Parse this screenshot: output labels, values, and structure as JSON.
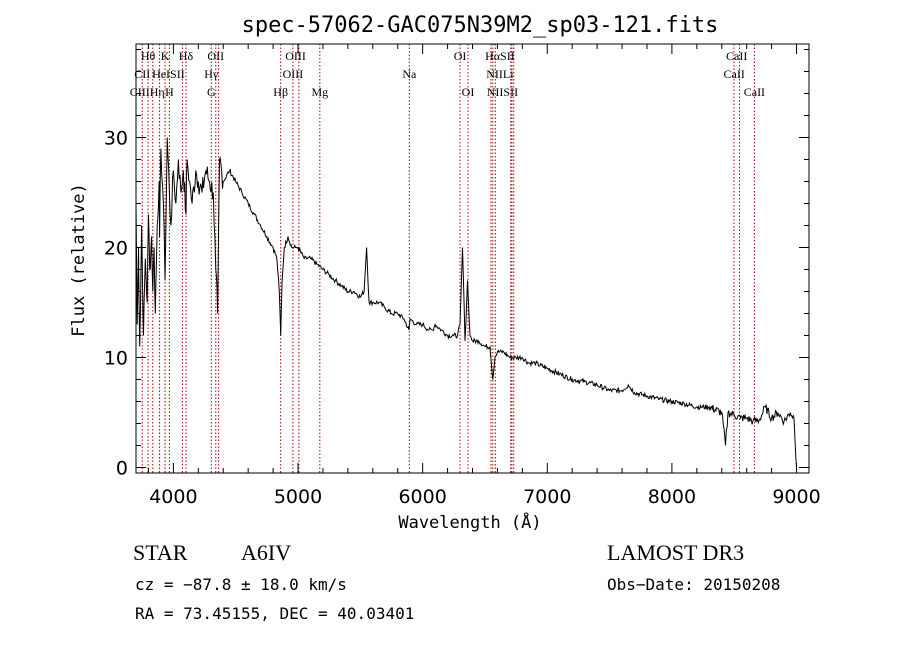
{
  "chart_data": {
    "type": "line",
    "title": "spec-57062-GAC075N39M2_sp03-121.fits",
    "xlabel": "Wavelength (Å)",
    "ylabel": "Flux (relative)",
    "xlim": [
      3700,
      9100
    ],
    "ylim": [
      -0.5,
      38.5
    ],
    "xticks": [
      4000,
      5000,
      6000,
      7000,
      8000,
      9000
    ],
    "yticks": [
      0,
      10,
      20,
      30
    ],
    "grid": false,
    "series": [
      {
        "name": "spectrum",
        "x": [
          3700,
          3710,
          3720,
          3730,
          3745,
          3760,
          3775,
          3790,
          3800,
          3810,
          3825,
          3835,
          3845,
          3855,
          3870,
          3885,
          3889,
          3900,
          3920,
          3933,
          3950,
          3968,
          3980,
          4000,
          4020,
          4040,
          4060,
          4080,
          4101,
          4110,
          4130,
          4150,
          4180,
          4200,
          4230,
          4260,
          4290,
          4320,
          4340,
          4355,
          4370,
          4400,
          4450,
          4500,
          4550,
          4600,
          4650,
          4700,
          4750,
          4800,
          4830,
          4850,
          4861,
          4872,
          4890,
          4920,
          4950,
          4980,
          5000,
          5050,
          5100,
          5150,
          5200,
          5250,
          5300,
          5350,
          5400,
          5450,
          5500,
          5530,
          5550,
          5570,
          5600,
          5650,
          5700,
          5750,
          5800,
          5850,
          5890,
          5900,
          5950,
          6000,
          6050,
          6080,
          6100,
          6150,
          6200,
          6250,
          6280,
          6300,
          6320,
          6340,
          6360,
          6380,
          6400,
          6450,
          6500,
          6540,
          6563,
          6580,
          6600,
          6650,
          6700,
          6750,
          6800,
          6850,
          6900,
          7000,
          7100,
          7200,
          7300,
          7400,
          7500,
          7600,
          7650,
          7700,
          7800,
          7900,
          8000,
          8100,
          8200,
          8300,
          8400,
          8430,
          8450,
          8500,
          8550,
          8600,
          8650,
          8700,
          8750,
          8800,
          8850,
          8900,
          8950,
          8980,
          9000
        ],
        "values": [
          24,
          13,
          20,
          11,
          22,
          12,
          19,
          15,
          23,
          18,
          21,
          16,
          20,
          14,
          22,
          26,
          21,
          29,
          24,
          17,
          30,
          25,
          22,
          27,
          24,
          28,
          25,
          27,
          23,
          28,
          26,
          24,
          27,
          26,
          25,
          27,
          26,
          25,
          18,
          14,
          28,
          26,
          27,
          26,
          25,
          24,
          23,
          22,
          21,
          20,
          19,
          16,
          12,
          17,
          20,
          21,
          20,
          20,
          20,
          19,
          19,
          18.5,
          18,
          17.5,
          17,
          16.5,
          16,
          16,
          15.5,
          16,
          20,
          15,
          15,
          15,
          14.5,
          14,
          14,
          13.5,
          12.5,
          13.5,
          13,
          13,
          12.5,
          12.5,
          13,
          12.5,
          12,
          12,
          12,
          13,
          20,
          11.5,
          17,
          12,
          11.5,
          11.5,
          11,
          11,
          8,
          10,
          10.5,
          10.5,
          10,
          10,
          10,
          9.5,
          9.5,
          9,
          8.5,
          8,
          7.8,
          7.5,
          7,
          7,
          7.5,
          6.8,
          6.5,
          6.2,
          6,
          5.8,
          5.5,
          5.5,
          5,
          2,
          5,
          4.8,
          4.5,
          4.5,
          4.2,
          4.3,
          5.5,
          4.5,
          5,
          4.2,
          5,
          4.5,
          0
        ]
      }
    ],
    "lines": [
      {
        "x": 3750,
        "labels": [
          "Hθ",
          "CII",
          "CIII"
        ]
      },
      {
        "x": 3797,
        "labels": [
          "Hθ"
        ]
      },
      {
        "x": 3835,
        "labels": []
      },
      {
        "x": 3889,
        "labels": [
          "Hε",
          "Hη"
        ]
      },
      {
        "x": 3933,
        "labels": [
          "K"
        ]
      },
      {
        "x": 3968,
        "labels": [
          "HeI",
          "H"
        ]
      },
      {
        "x": 4072,
        "labels": [
          "SII"
        ]
      },
      {
        "x": 4101,
        "labels": [
          "Hδ",
          "SII"
        ]
      },
      {
        "x": 4304,
        "labels": [
          "Hγ",
          "G"
        ]
      },
      {
        "x": 4340,
        "labels": [
          "OII",
          "G"
        ]
      },
      {
        "x": 4363,
        "labels": [
          "OII"
        ]
      },
      {
        "x": 4861,
        "labels": [
          "Hβ"
        ]
      },
      {
        "x": 4959,
        "labels": [
          "OIII",
          "OIII"
        ]
      },
      {
        "x": 5007,
        "labels": [
          "OIII"
        ]
      },
      {
        "x": 5175,
        "labels": [
          "Mg"
        ]
      },
      {
        "x": 5893,
        "labels": [
          "Na"
        ]
      },
      {
        "x": 6300,
        "labels": [
          "OI"
        ]
      },
      {
        "x": 6364,
        "labels": [
          "OI"
        ]
      },
      {
        "x": 6548,
        "labels": [
          "NII"
        ]
      },
      {
        "x": 6563,
        "labels": [
          "Hα"
        ]
      },
      {
        "x": 6583,
        "labels": [
          "NII"
        ]
      },
      {
        "x": 6707,
        "labels": [
          "Li"
        ]
      },
      {
        "x": 6716,
        "labels": [
          "SII",
          "SII"
        ]
      },
      {
        "x": 6731,
        "labels": [
          "SII"
        ]
      },
      {
        "x": 8498,
        "labels": [
          "CaII"
        ]
      },
      {
        "x": 8542,
        "labels": [
          "CaII"
        ]
      },
      {
        "x": 8662,
        "labels": [
          "CaII"
        ]
      }
    ],
    "annotations": [
      {
        "text": "Hθ",
        "x": 3797,
        "row": 0
      },
      {
        "text": "K",
        "x": 3933,
        "row": 0
      },
      {
        "text": "Hδ",
        "x": 4101,
        "row": 0
      },
      {
        "text": "OII",
        "x": 4340,
        "row": 0
      },
      {
        "text": "OIII",
        "x": 4980,
        "row": 0
      },
      {
        "text": "OI",
        "x": 6300,
        "row": 0
      },
      {
        "text": "HαSII",
        "x": 6620,
        "row": 0
      },
      {
        "text": "CaII",
        "x": 8520,
        "row": 0
      },
      {
        "text": "CII",
        "x": 3750,
        "row": 1
      },
      {
        "text": "HeISII",
        "x": 3960,
        "row": 1
      },
      {
        "text": "Hγ",
        "x": 4304,
        "row": 1
      },
      {
        "text": "OIII",
        "x": 4959,
        "row": 1
      },
      {
        "text": "Na",
        "x": 5893,
        "row": 1
      },
      {
        "text": "NIILi",
        "x": 6620,
        "row": 1
      },
      {
        "text": "CaII",
        "x": 8500,
        "row": 1
      },
      {
        "text": "CIIIHη",
        "x": 3790,
        "row": 2
      },
      {
        "text": "H",
        "x": 3968,
        "row": 2
      },
      {
        "text": "G",
        "x": 4304,
        "row": 2
      },
      {
        "text": "Hβ",
        "x": 4861,
        "row": 2
      },
      {
        "text": "Mg",
        "x": 5175,
        "row": 2
      },
      {
        "text": "OI",
        "x": 6364,
        "row": 2
      },
      {
        "text": "NIISII",
        "x": 6640,
        "row": 2
      },
      {
        "text": "CaII",
        "x": 8662,
        "row": 2
      }
    ]
  },
  "info": {
    "object_type": "STAR",
    "spectral_class": "A6IV",
    "survey": "LAMOST DR3",
    "redshift_line": "cz = −87.8 ± 18.0 km/s",
    "obs_date": "Obs−Date: 20150208",
    "coords": "RA =  73.45155, DEC =  40.03401"
  },
  "colors": {
    "spectrum": "#000000",
    "line_markers": "#aa0000",
    "axes": "#000000"
  }
}
